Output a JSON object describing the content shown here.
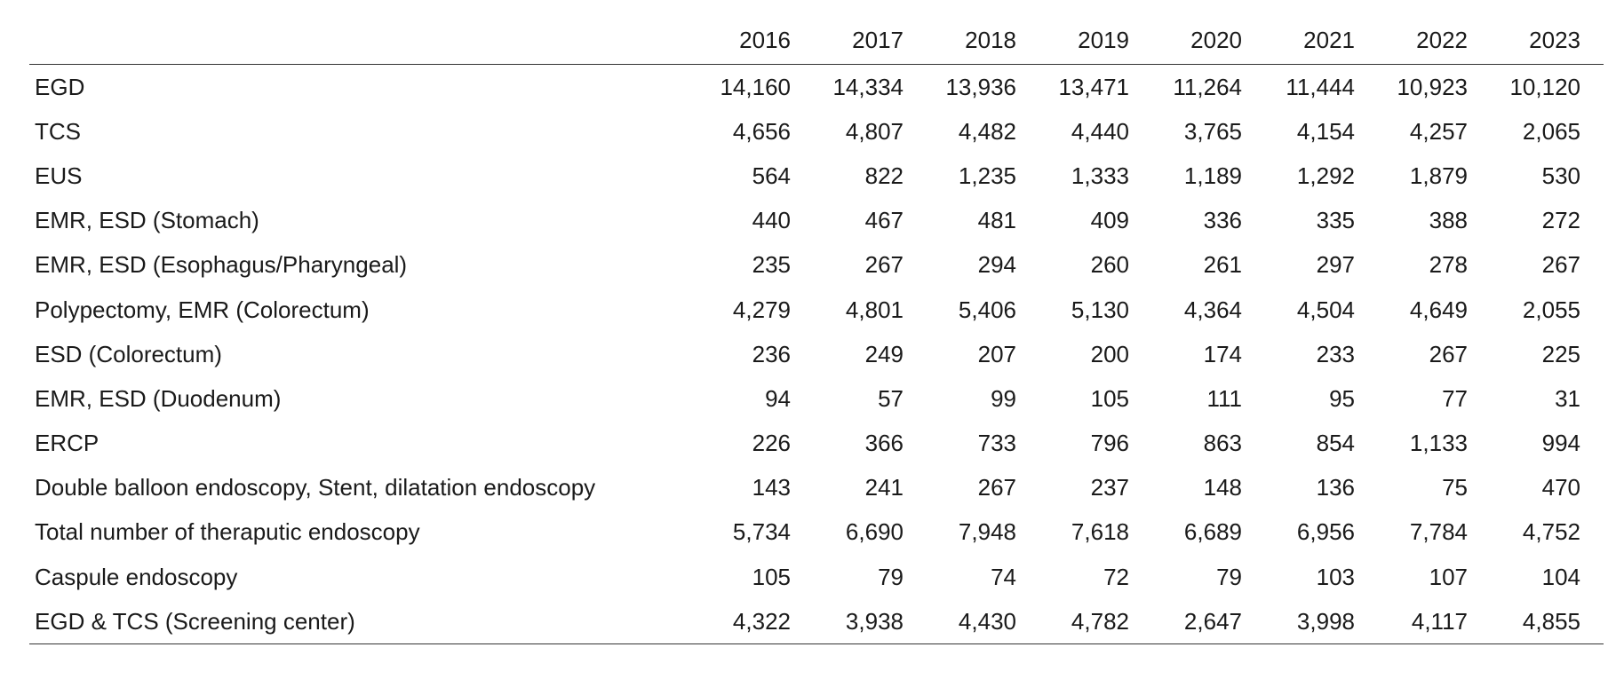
{
  "table": {
    "years": [
      "2016",
      "2017",
      "2018",
      "2019",
      "2020",
      "2021",
      "2022",
      "2023"
    ],
    "rows": [
      {
        "label": "EGD",
        "values": [
          "14,160",
          "14,334",
          "13,936",
          "13,471",
          "11,264",
          "11,444",
          "10,923",
          "10,120"
        ]
      },
      {
        "label": "TCS",
        "values": [
          "4,656",
          "4,807",
          "4,482",
          "4,440",
          "3,765",
          "4,154",
          "4,257",
          "2,065"
        ]
      },
      {
        "label": "EUS",
        "values": [
          "564",
          "822",
          "1,235",
          "1,333",
          "1,189",
          "1,292",
          "1,879",
          "530"
        ]
      },
      {
        "label": "EMR, ESD (Stomach)",
        "values": [
          "440",
          "467",
          "481",
          "409",
          "336",
          "335",
          "388",
          "272"
        ]
      },
      {
        "label": "EMR, ESD (Esophagus/Pharyngeal)",
        "values": [
          "235",
          "267",
          "294",
          "260",
          "261",
          "297",
          "278",
          "267"
        ]
      },
      {
        "label": "Polypectomy, EMR (Colorectum)",
        "values": [
          "4,279",
          "4,801",
          "5,406",
          "5,130",
          "4,364",
          "4,504",
          "4,649",
          "2,055"
        ]
      },
      {
        "label": "ESD (Colorectum)",
        "values": [
          "236",
          "249",
          "207",
          "200",
          "174",
          "233",
          "267",
          "225"
        ]
      },
      {
        "label": "EMR, ESD (Duodenum)",
        "values": [
          "94",
          "57",
          "99",
          "105",
          "111",
          "95",
          "77",
          "31"
        ]
      },
      {
        "label": "ERCP",
        "values": [
          "226",
          "366",
          "733",
          "796",
          "863",
          "854",
          "1,133",
          "994"
        ]
      },
      {
        "label": "Double balloon endoscopy, Stent, dilatation endoscopy",
        "values": [
          "143",
          "241",
          "267",
          "237",
          "148",
          "136",
          "75",
          "470"
        ]
      },
      {
        "label": "Total number of theraputic endoscopy",
        "values": [
          "5,734",
          "6,690",
          "7,948",
          "7,618",
          "6,689",
          "6,956",
          "7,784",
          "4,752"
        ]
      },
      {
        "label": "Caspule endoscopy",
        "values": [
          "105",
          "79",
          "74",
          "72",
          "79",
          "103",
          "107",
          "104"
        ]
      },
      {
        "label": "EGD & TCS (Screening center)",
        "values": [
          "4,322",
          "3,938",
          "4,430",
          "4,782",
          "2,647",
          "3,998",
          "4,117",
          "4,855"
        ]
      }
    ]
  }
}
